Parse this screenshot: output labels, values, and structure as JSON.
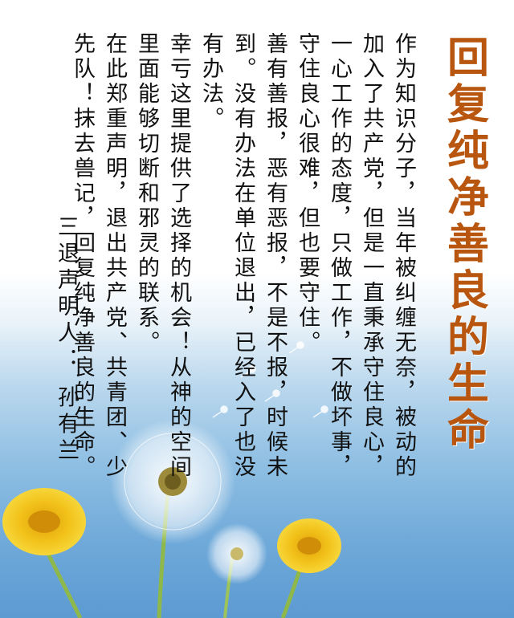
{
  "title": "回复纯净善良的生命",
  "paragraphs": [
    "作为知识分子，当年被纠缠无奈，被动的加入了共产党，但是一直秉承守住良心，一心工作的态度，只做工作，不做坏事，守住良心很难，但也要守住。",
    "善有善报，恶有恶报，不是不报，时候未到。没有办法在单位退出，已经入了也没有办法。",
    "幸亏这里提供了选择的机会！从神的空间里面能够切断和邪灵的联系。",
    "在此郑重声明，退出共产党、共青团、少先队！抹去兽记，回复纯净善良的生命。"
  ],
  "signature": "三退声明人： 孙有兰",
  "colors": {
    "title": "#b8560f",
    "text": "#111111"
  },
  "decor": [
    "dandelion-seedhead",
    "yellow-dandelion-flower"
  ]
}
